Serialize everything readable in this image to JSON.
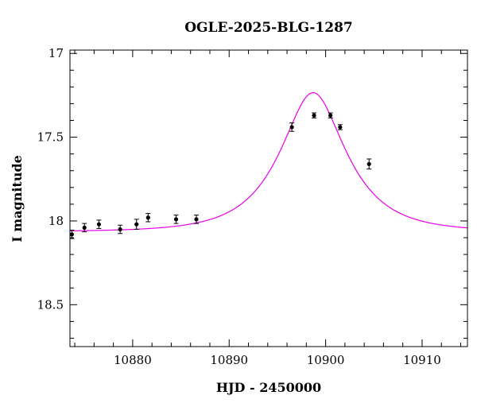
{
  "chart_data": {
    "type": "scatter",
    "title": "OGLE-2025-BLG-1287",
    "xlabel": "HJD - 2450000",
    "ylabel": "I magnitude",
    "xlim": [
      10873.5,
      10914.7
    ],
    "ylim": [
      18.75,
      16.98
    ],
    "y_inverted": true,
    "x_major_ticks": [
      10880,
      10890,
      10900,
      10910
    ],
    "x_minor_step": 2,
    "y_major_ticks": [
      17,
      17.5,
      18,
      18.5
    ],
    "y_minor_step": 0.1,
    "grid": false,
    "series": [
      {
        "kind": "points",
        "color": "#000000",
        "x": [
          10873.7,
          10875.0,
          10876.5,
          10878.7,
          10880.4,
          10881.6,
          10884.5,
          10886.6,
          10896.5,
          10898.8,
          10900.5,
          10901.5,
          10904.5
        ],
        "y": [
          18.08,
          18.04,
          18.02,
          18.05,
          18.02,
          17.98,
          17.99,
          17.99,
          17.44,
          17.37,
          17.37,
          17.44,
          17.66
        ],
        "yerr": [
          0.025,
          0.025,
          0.025,
          0.025,
          0.03,
          0.025,
          0.025,
          0.025,
          0.025,
          0.015,
          0.015,
          0.015,
          0.03
        ]
      },
      {
        "kind": "model",
        "color": "#e800e8",
        "baseline_mag": 18.064,
        "t0": 10898.7,
        "u0": 0.51,
        "tE": 5.8
      }
    ]
  }
}
